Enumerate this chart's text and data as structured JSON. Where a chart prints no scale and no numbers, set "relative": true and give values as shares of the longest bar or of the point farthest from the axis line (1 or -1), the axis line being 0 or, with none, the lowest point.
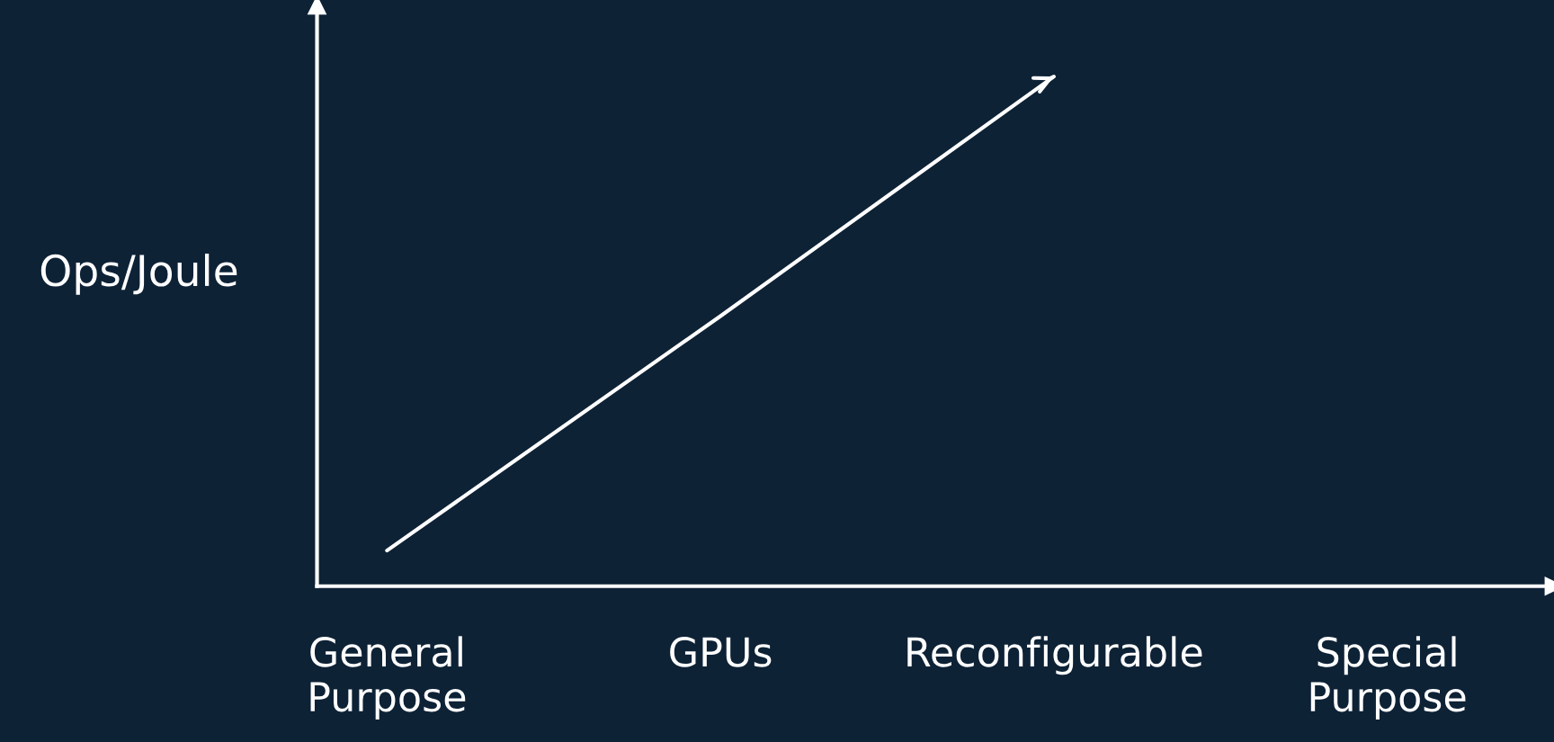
{
  "chart_data": {
    "type": "line",
    "relative": true,
    "ylabel": "Ops/Joule",
    "categories": [
      "General\nPurpose",
      "GPUs",
      "Reconfigurable",
      "Special\nPurpose"
    ],
    "series": [
      {
        "color": "#ffffff",
        "values": [
          0.07,
          0.53,
          1.0,
          null
        ]
      }
    ],
    "grid": false,
    "legend": false,
    "marker": "none",
    "line_style": "solid"
  }
}
